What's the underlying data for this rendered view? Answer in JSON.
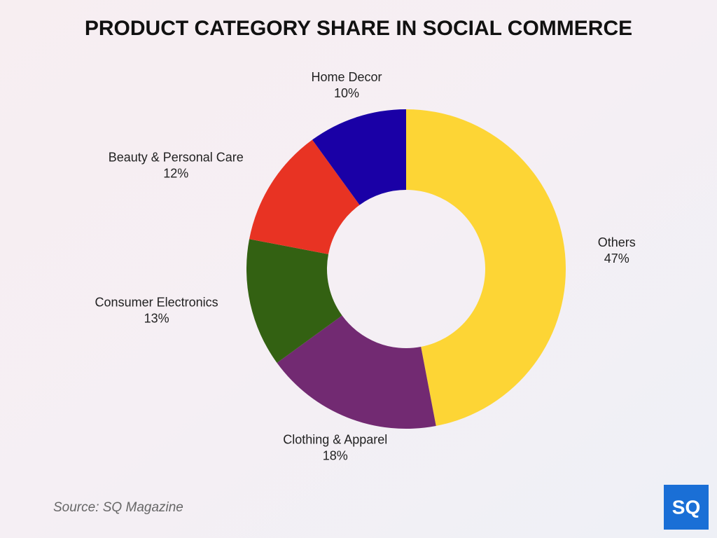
{
  "chart_data": {
    "type": "donut",
    "title": "PRODUCT CATEGORY SHARE IN SOCIAL COMMERCE",
    "categories": [
      "Others",
      "Clothing & Apparel",
      "Consumer Electronics",
      "Beauty & Personal Care",
      "Home Decor"
    ],
    "values": [
      47,
      18,
      13,
      12,
      10
    ],
    "value_labels": [
      "47%",
      "18%",
      "13%",
      "12%",
      "10%"
    ],
    "colors": [
      "#fdd535",
      "#722a72",
      "#336112",
      "#e83323",
      "#1a00a6"
    ],
    "source": "Source: SQ Magazine",
    "logo": "SQ"
  }
}
